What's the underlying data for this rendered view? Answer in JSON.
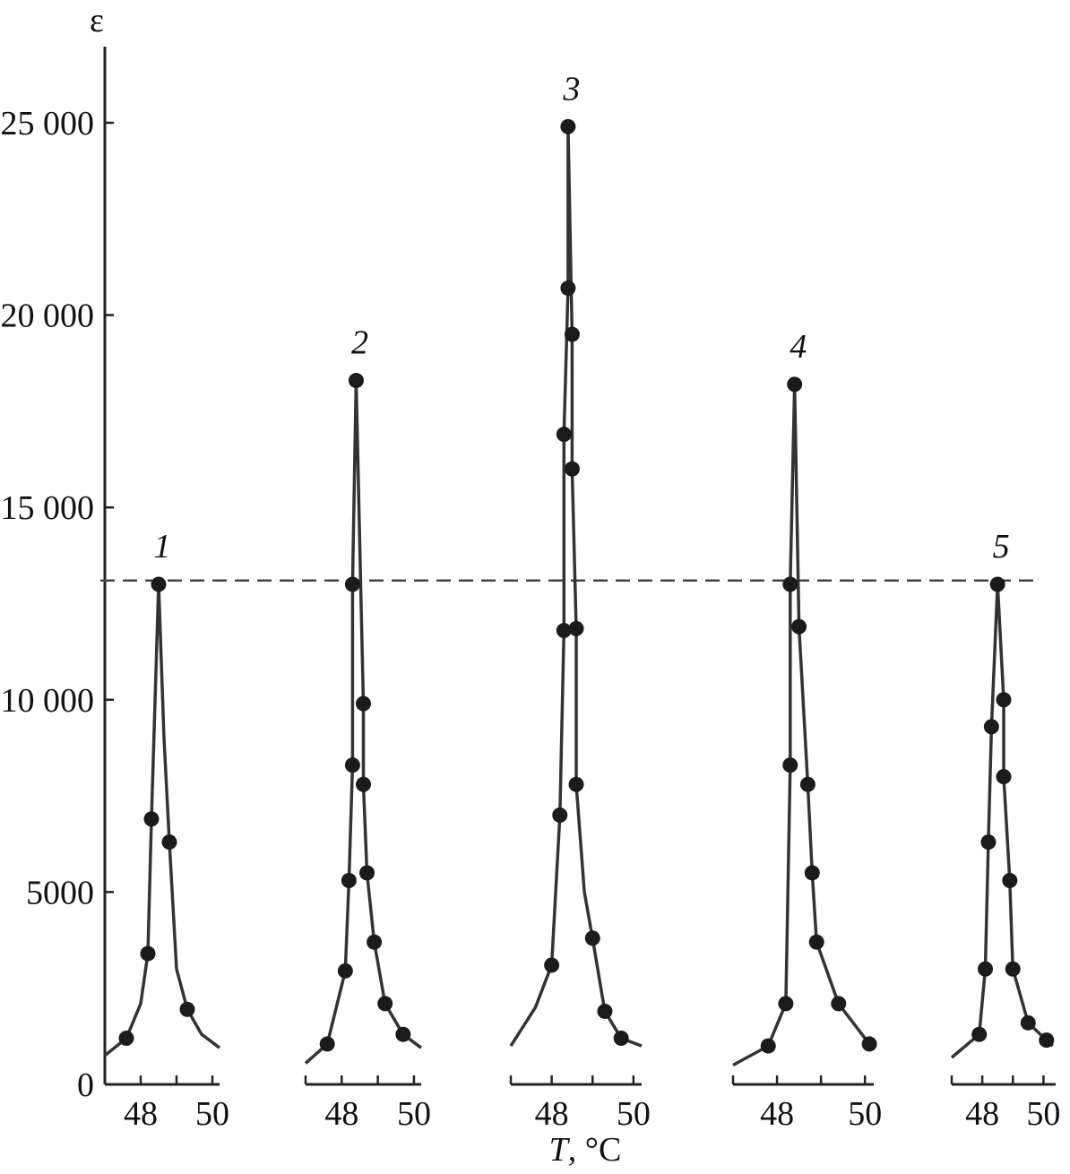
{
  "chart_data": {
    "type": "line",
    "ylabel": "ε",
    "xlabel_italic": "T",
    "xlabel_rest": ", °C",
    "ylim": [
      0,
      27000
    ],
    "y_ticks": [
      0,
      5000,
      10000,
      15000,
      20000,
      25000
    ],
    "y_tick_labels": [
      "0",
      "5000",
      "10 000",
      "15 000",
      "20 000",
      "25 000"
    ],
    "x_tick_labels": [
      "48",
      "50"
    ],
    "reference_line": {
      "y": 13100,
      "style": "dashed"
    },
    "panels": [
      {
        "name": "1",
        "xlim": [
          47,
          50.2
        ],
        "x_ticks": [
          48,
          49,
          50
        ],
        "markers": [
          [
            47.6,
            1200
          ],
          [
            48.2,
            3400
          ],
          [
            48.3,
            6900
          ],
          [
            48.5,
            13000
          ],
          [
            48.8,
            6300
          ],
          [
            49.3,
            1950
          ]
        ],
        "curve": [
          [
            47.0,
            750
          ],
          [
            47.6,
            1200
          ],
          [
            48.0,
            2100
          ],
          [
            48.2,
            3400
          ],
          [
            48.3,
            6900
          ],
          [
            48.5,
            13000
          ],
          [
            48.65,
            9000
          ],
          [
            48.8,
            6300
          ],
          [
            49.0,
            3000
          ],
          [
            49.3,
            1950
          ],
          [
            49.7,
            1300
          ],
          [
            50.2,
            950
          ]
        ]
      },
      {
        "name": "2",
        "xlim": [
          47,
          50.2
        ],
        "x_ticks": [
          48,
          49,
          50
        ],
        "markers": [
          [
            47.6,
            1050
          ],
          [
            48.1,
            2950
          ],
          [
            48.2,
            5300
          ],
          [
            48.3,
            8300
          ],
          [
            48.3,
            13000
          ],
          [
            48.4,
            18300
          ],
          [
            48.6,
            9900
          ],
          [
            48.6,
            7800
          ],
          [
            48.7,
            5500
          ],
          [
            48.9,
            3700
          ],
          [
            49.2,
            2100
          ],
          [
            49.7,
            1300
          ]
        ],
        "curve": [
          [
            47.0,
            550
          ],
          [
            47.6,
            1050
          ],
          [
            48.1,
            2950
          ],
          [
            48.2,
            5300
          ],
          [
            48.3,
            8300
          ],
          [
            48.3,
            13000
          ],
          [
            48.4,
            18300
          ],
          [
            48.5,
            14000
          ],
          [
            48.6,
            9900
          ],
          [
            48.6,
            7800
          ],
          [
            48.7,
            5500
          ],
          [
            48.9,
            3700
          ],
          [
            49.2,
            2100
          ],
          [
            49.7,
            1300
          ],
          [
            50.2,
            950
          ]
        ]
      },
      {
        "name": "3",
        "xlim": [
          47,
          50.2
        ],
        "x_ticks": [
          48,
          49,
          50
        ],
        "markers": [
          [
            48.0,
            3100
          ],
          [
            48.2,
            7000
          ],
          [
            48.3,
            11800
          ],
          [
            48.3,
            16900
          ],
          [
            48.4,
            20700
          ],
          [
            48.4,
            24900
          ],
          [
            48.5,
            19500
          ],
          [
            48.5,
            16000
          ],
          [
            48.6,
            11850
          ],
          [
            48.6,
            7800
          ],
          [
            49.0,
            3800
          ],
          [
            49.3,
            1900
          ],
          [
            49.7,
            1200
          ]
        ],
        "curve": [
          [
            47.0,
            1000
          ],
          [
            47.6,
            2000
          ],
          [
            48.0,
            3100
          ],
          [
            48.2,
            7000
          ],
          [
            48.3,
            11800
          ],
          [
            48.3,
            16900
          ],
          [
            48.4,
            20700
          ],
          [
            48.4,
            24900
          ],
          [
            48.5,
            19500
          ],
          [
            48.5,
            16000
          ],
          [
            48.6,
            11850
          ],
          [
            48.6,
            7800
          ],
          [
            48.8,
            5000
          ],
          [
            49.0,
            3800
          ],
          [
            49.3,
            1900
          ],
          [
            49.7,
            1200
          ],
          [
            50.2,
            1000
          ]
        ]
      },
      {
        "name": "4",
        "xlim": [
          47,
          50.2
        ],
        "x_ticks": [
          48,
          49,
          50
        ],
        "markers": [
          [
            47.8,
            1000
          ],
          [
            48.2,
            2100
          ],
          [
            48.3,
            8300
          ],
          [
            48.3,
            13000
          ],
          [
            48.4,
            18200
          ],
          [
            48.5,
            11900
          ],
          [
            48.7,
            7800
          ],
          [
            48.8,
            5500
          ],
          [
            48.9,
            3700
          ],
          [
            49.4,
            2100
          ],
          [
            50.1,
            1050
          ]
        ],
        "curve": [
          [
            47.0,
            500
          ],
          [
            47.8,
            1000
          ],
          [
            48.2,
            2100
          ],
          [
            48.3,
            8300
          ],
          [
            48.3,
            13000
          ],
          [
            48.4,
            18200
          ],
          [
            48.5,
            11900
          ],
          [
            48.7,
            7800
          ],
          [
            48.8,
            5500
          ],
          [
            48.9,
            3700
          ],
          [
            49.4,
            2100
          ],
          [
            50.1,
            1050
          ],
          [
            50.2,
            1000
          ]
        ]
      },
      {
        "name": "5",
        "xlim": [
          47,
          50.4
        ],
        "x_ticks": [
          48,
          49,
          50
        ],
        "markers": [
          [
            47.9,
            1300
          ],
          [
            48.1,
            3000
          ],
          [
            48.2,
            6300
          ],
          [
            48.3,
            9300
          ],
          [
            48.5,
            13000
          ],
          [
            48.7,
            10000
          ],
          [
            48.7,
            8000
          ],
          [
            48.9,
            5300
          ],
          [
            49.0,
            3000
          ],
          [
            49.5,
            1600
          ],
          [
            50.1,
            1150
          ]
        ],
        "curve": [
          [
            47.0,
            700
          ],
          [
            47.9,
            1300
          ],
          [
            48.1,
            3000
          ],
          [
            48.2,
            6300
          ],
          [
            48.3,
            9300
          ],
          [
            48.5,
            13000
          ],
          [
            48.7,
            10000
          ],
          [
            48.7,
            8000
          ],
          [
            48.9,
            5300
          ],
          [
            49.0,
            3000
          ],
          [
            49.5,
            1600
          ],
          [
            50.1,
            1150
          ],
          [
            50.3,
            1000
          ]
        ]
      }
    ]
  }
}
